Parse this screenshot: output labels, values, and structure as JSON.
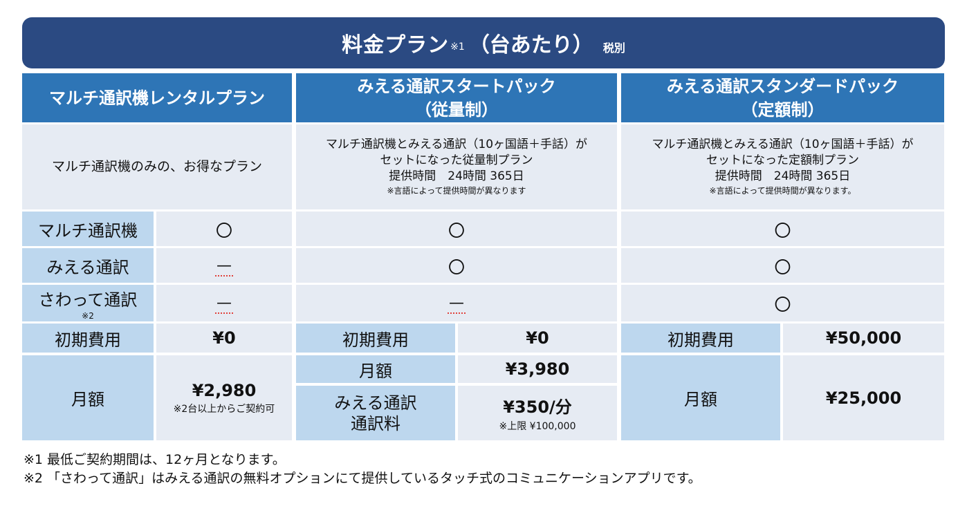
{
  "title": {
    "main": "料金プラン",
    "note": "※1",
    "sub": "（台あたり）",
    "tax": "税別"
  },
  "plans": {
    "rental": {
      "name": "マルチ通訳機レンタルプラン",
      "desc": "マルチ通訳機のみの、お得なプラン"
    },
    "start": {
      "name_line1": "みえる通訳スタートパック",
      "name_line2": "（従量制）",
      "desc_line1": "マルチ通訳機とみえる通訳（10ヶ国語＋手話）が",
      "desc_line2": "セットになった従量制プラン",
      "desc_line3": "提供時間　24時間 365日",
      "desc_note": "※言語によって提供時間が異なります"
    },
    "standard": {
      "name_line1": "みえる通訳スタンダードパック",
      "name_line2": "（定額制）",
      "desc_line1": "マルチ通訳機とみえる通訳（10ヶ国語＋手話）が",
      "desc_line2": "セットになった定額制プラン",
      "desc_line3": "提供時間　24時間 365日",
      "desc_note": "※言語によって提供時間が異なります。"
    }
  },
  "features": {
    "device": "マルチ通訳機",
    "mieru": "みえる通訳",
    "sawatte": "さわって通訳",
    "sawatte_note": "※2"
  },
  "symbols": {
    "yes": "〇",
    "no": "—"
  },
  "pricing": {
    "initial_label": "初期費用",
    "monthly_label": "月額",
    "rental_initial": "¥0",
    "rental_monthly": "¥2,980",
    "rental_monthly_note": "※2台以上からご契約可",
    "start_initial": "¥0",
    "start_monthly": "¥3,980",
    "start_usage_label_line1": "みえる通訳",
    "start_usage_label_line2": "通訳料",
    "start_usage_value": "¥350/分",
    "start_usage_note": "※上限 ¥100,000",
    "standard_initial": "¥50,000",
    "standard_monthly": "¥25,000"
  },
  "footnotes": [
    "※1 最低ご契約期間は、12ヶ月となります。",
    "※2 「さわって通訳」はみえる通訳の無料オプションにて提供しているタッチ式のコミュニケーションアプリです。"
  ]
}
